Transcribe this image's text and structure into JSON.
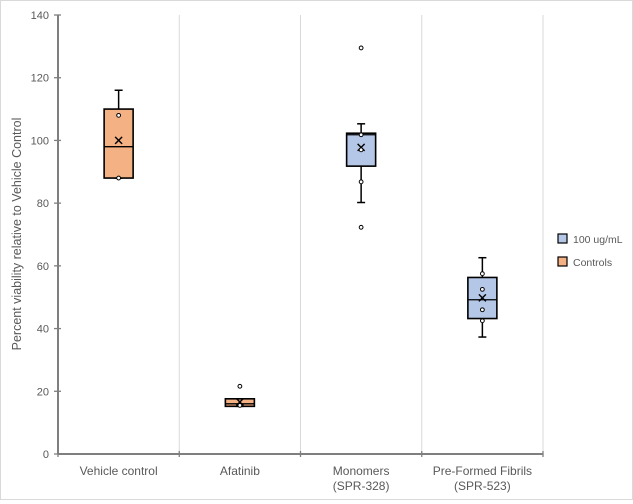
{
  "chart_data": {
    "type": "box",
    "title": "",
    "xlabel": "",
    "ylabel": "Percent viability relative to Vehicle Control",
    "ylim": [
      0,
      140
    ],
    "yticks": [
      0,
      20,
      40,
      60,
      80,
      100,
      120,
      140
    ],
    "grid": "vertical category dividers",
    "legend_position": "right",
    "categories": [
      {
        "label": [
          "Vehicle control"
        ],
        "series": "Controls"
      },
      {
        "label": [
          "Afatinib"
        ],
        "series": "Controls"
      },
      {
        "label": [
          "Monomers",
          "(SPR-328)"
        ],
        "series": "100 ug/mL"
      },
      {
        "label": [
          "Pre-Formed Fibrils",
          "(SPR-523)"
        ],
        "series": "100 ug/mL"
      }
    ],
    "series": [
      {
        "name": "100 ug/mL",
        "color": "#b4c7e7"
      },
      {
        "name": "Controls",
        "color": "#f4b183"
      }
    ],
    "boxes": [
      {
        "category": "Vehicle control",
        "whisker_low": 88,
        "q1": 88,
        "median": 98,
        "q3": 110,
        "whisker_high": 116,
        "mean": 100,
        "points": [
          108,
          88
        ],
        "outliers": []
      },
      {
        "category": "Afatinib",
        "whisker_low": 15.2,
        "q1": 15.2,
        "median": 16,
        "q3": 17.6,
        "whisker_high": 17.6,
        "mean": 16.6,
        "points": [
          15.5
        ],
        "outliers": [
          21.6
        ]
      },
      {
        "category": "Monomers (SPR-328)",
        "whisker_low": 80.2,
        "q1": 91.8,
        "median": 101.8,
        "q3": 102.3,
        "whisker_high": 105.3,
        "mean": 97.8,
        "points": [
          101.8,
          97,
          86.8
        ],
        "outliers": [
          129.5,
          72.3
        ]
      },
      {
        "category": "Pre-Formed Fibrils (SPR-523)",
        "whisker_low": 37.3,
        "q1": 43.2,
        "median": 49.2,
        "q3": 56.3,
        "whisker_high": 62.6,
        "mean": 49.8,
        "points": [
          57.5,
          52.5,
          46,
          42.5
        ],
        "outliers": []
      }
    ]
  }
}
